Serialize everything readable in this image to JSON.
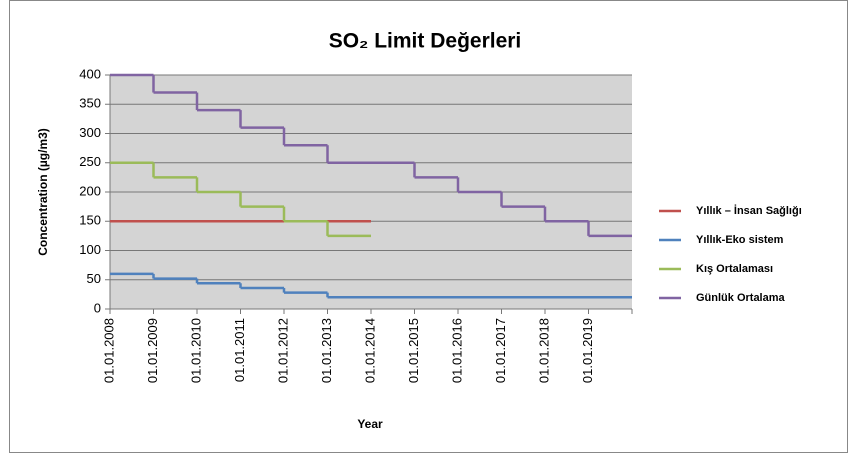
{
  "chart_data": {
    "type": "step",
    "title": "SO₂ Limit Değerleri",
    "x_label": "Year",
    "y_label": "Concentration (µg/m3)",
    "categories": [
      "01.01.2008",
      "01.01.2009",
      "01.01.2010",
      "01.01.2011",
      "01.01.2012",
      "01.01.2013",
      "01.01.2014",
      "01.01.2015",
      "01.01.2016",
      "01.01.2017",
      "01.01.2018",
      "01.01.2019"
    ],
    "ylim": [
      0,
      400
    ],
    "yticks": [
      0,
      50,
      100,
      150,
      200,
      250,
      300,
      350,
      400
    ],
    "grid": true,
    "legend": "right",
    "series": [
      {
        "name": "Yıllık – İnsan Sağlığı",
        "color": "#c0504d",
        "values": [
          150,
          150,
          150,
          150,
          150,
          150,
          null,
          null,
          null,
          null,
          null,
          null
        ]
      },
      {
        "name": "Yıllık-Eko sistem",
        "color": "#4f81bd",
        "values": [
          60,
          52,
          44,
          36,
          28,
          20,
          20,
          20,
          20,
          20,
          20,
          20
        ]
      },
      {
        "name": "Kış Ortalaması",
        "color": "#9bbb59",
        "values": [
          250,
          225,
          200,
          175,
          150,
          125,
          null,
          null,
          null,
          null,
          null,
          null
        ]
      },
      {
        "name": "Günlük Ortalama",
        "color": "#8064a2",
        "values": [
          400,
          370,
          340,
          310,
          280,
          250,
          250,
          225,
          200,
          175,
          150,
          125
        ]
      }
    ]
  }
}
